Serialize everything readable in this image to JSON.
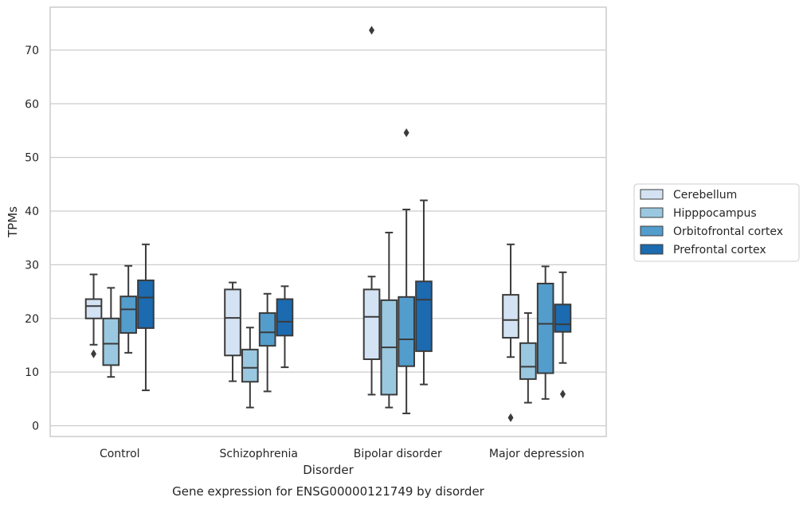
{
  "chart_data": {
    "type": "boxplot",
    "title": "",
    "caption": "Gene expression for ENSG00000121749 by disorder",
    "xlabel": "Disorder",
    "ylabel": "TPMs",
    "ylim": [
      -2,
      78
    ],
    "yticks": [
      0,
      10,
      20,
      30,
      40,
      50,
      60,
      70
    ],
    "categories": [
      "Control",
      "Schizophrenia",
      "Bipolar disorder",
      "Major depression"
    ],
    "grid": "horizontal",
    "legend_position": "right",
    "series": [
      {
        "name": "Cerebellum",
        "color": "#d3e3f3",
        "boxes": [
          {
            "whislo": 15.1,
            "q1": 20.0,
            "med": 22.3,
            "q3": 23.6,
            "whishi": 28.2,
            "fliers": [
              13.4
            ]
          },
          {
            "whislo": 8.3,
            "q1": 13.1,
            "med": 20.1,
            "q3": 25.4,
            "whishi": 26.7,
            "fliers": []
          },
          {
            "whislo": 5.8,
            "q1": 12.4,
            "med": 20.3,
            "q3": 25.4,
            "whishi": 27.8,
            "fliers": [
              73.7
            ]
          },
          {
            "whislo": 12.8,
            "q1": 16.4,
            "med": 19.7,
            "q3": 24.4,
            "whishi": 33.8,
            "fliers": [
              1.5
            ]
          }
        ]
      },
      {
        "name": "Hipppocampus",
        "color": "#9ac8e0",
        "boxes": [
          {
            "whislo": 9.1,
            "q1": 11.3,
            "med": 15.3,
            "q3": 20.0,
            "whishi": 25.7,
            "fliers": []
          },
          {
            "whislo": 3.4,
            "q1": 8.2,
            "med": 10.8,
            "q3": 14.2,
            "whishi": 18.3,
            "fliers": []
          },
          {
            "whislo": 3.4,
            "q1": 5.8,
            "med": 14.6,
            "q3": 23.4,
            "whishi": 36.0,
            "fliers": []
          },
          {
            "whislo": 4.3,
            "q1": 8.7,
            "med": 11.0,
            "q3": 15.4,
            "whishi": 21.0,
            "fliers": []
          }
        ]
      },
      {
        "name": "Orbitofrontal cortex",
        "color": "#529dcc",
        "boxes": [
          {
            "whislo": 13.6,
            "q1": 17.3,
            "med": 21.7,
            "q3": 24.1,
            "whishi": 29.8,
            "fliers": []
          },
          {
            "whislo": 6.4,
            "q1": 14.9,
            "med": 17.4,
            "q3": 21.0,
            "whishi": 24.6,
            "fliers": []
          },
          {
            "whislo": 2.3,
            "q1": 11.1,
            "med": 16.1,
            "q3": 24.0,
            "whishi": 40.3,
            "fliers": [
              54.6
            ]
          },
          {
            "whislo": 5.0,
            "q1": 9.8,
            "med": 19.0,
            "q3": 26.5,
            "whishi": 29.7,
            "fliers": []
          }
        ]
      },
      {
        "name": "Prefrontal cortex",
        "color": "#1c6aaf",
        "boxes": [
          {
            "whislo": 6.6,
            "q1": 18.2,
            "med": 23.9,
            "q3": 27.1,
            "whishi": 33.8,
            "fliers": []
          },
          {
            "whislo": 10.9,
            "q1": 16.8,
            "med": 19.4,
            "q3": 23.6,
            "whishi": 26.0,
            "fliers": []
          },
          {
            "whislo": 7.7,
            "q1": 13.9,
            "med": 23.5,
            "q3": 26.9,
            "whishi": 42.0,
            "fliers": []
          },
          {
            "whislo": 11.7,
            "q1": 17.5,
            "med": 18.9,
            "q3": 22.6,
            "whishi": 28.6,
            "fliers": [
              5.9
            ]
          }
        ]
      }
    ]
  }
}
